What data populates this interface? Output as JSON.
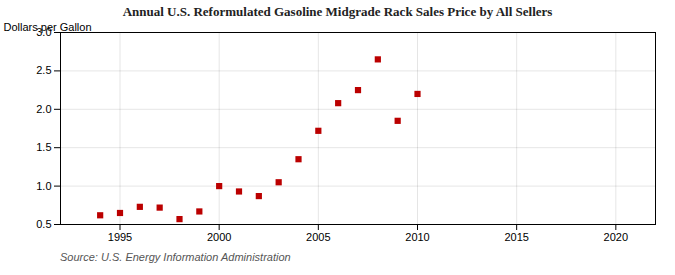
{
  "chart_data": {
    "type": "scatter",
    "title": "Annual U.S. Reformulated Gasoline Midgrade Rack Sales Price by All Sellers",
    "ylabel": "Dollars per Gallon",
    "source": "Source: U.S. Energy Information Administration",
    "x": [
      1994,
      1995,
      1996,
      1997,
      1998,
      1999,
      2000,
      2001,
      2002,
      2003,
      2004,
      2005,
      2006,
      2007,
      2008,
      2009,
      2010
    ],
    "values": [
      0.62,
      0.65,
      0.73,
      0.72,
      0.57,
      0.67,
      1.0,
      0.93,
      0.87,
      1.05,
      1.35,
      1.72,
      2.08,
      2.25,
      2.65,
      1.85,
      2.2
    ],
    "color": "#bb0000",
    "marker": "square",
    "xlim": [
      1992,
      2022
    ],
    "ylim": [
      0.5,
      3.0
    ],
    "xticks": [
      1995,
      2000,
      2005,
      2010,
      2015,
      2020
    ],
    "yticks": [
      0.5,
      {
        "value": 1,
        "label": "1.0"
      },
      1.5,
      {
        "value": 2,
        "label": "2.0"
      },
      2.5,
      {
        "value": 3,
        "label": "3.0"
      }
    ],
    "grid": true
  }
}
